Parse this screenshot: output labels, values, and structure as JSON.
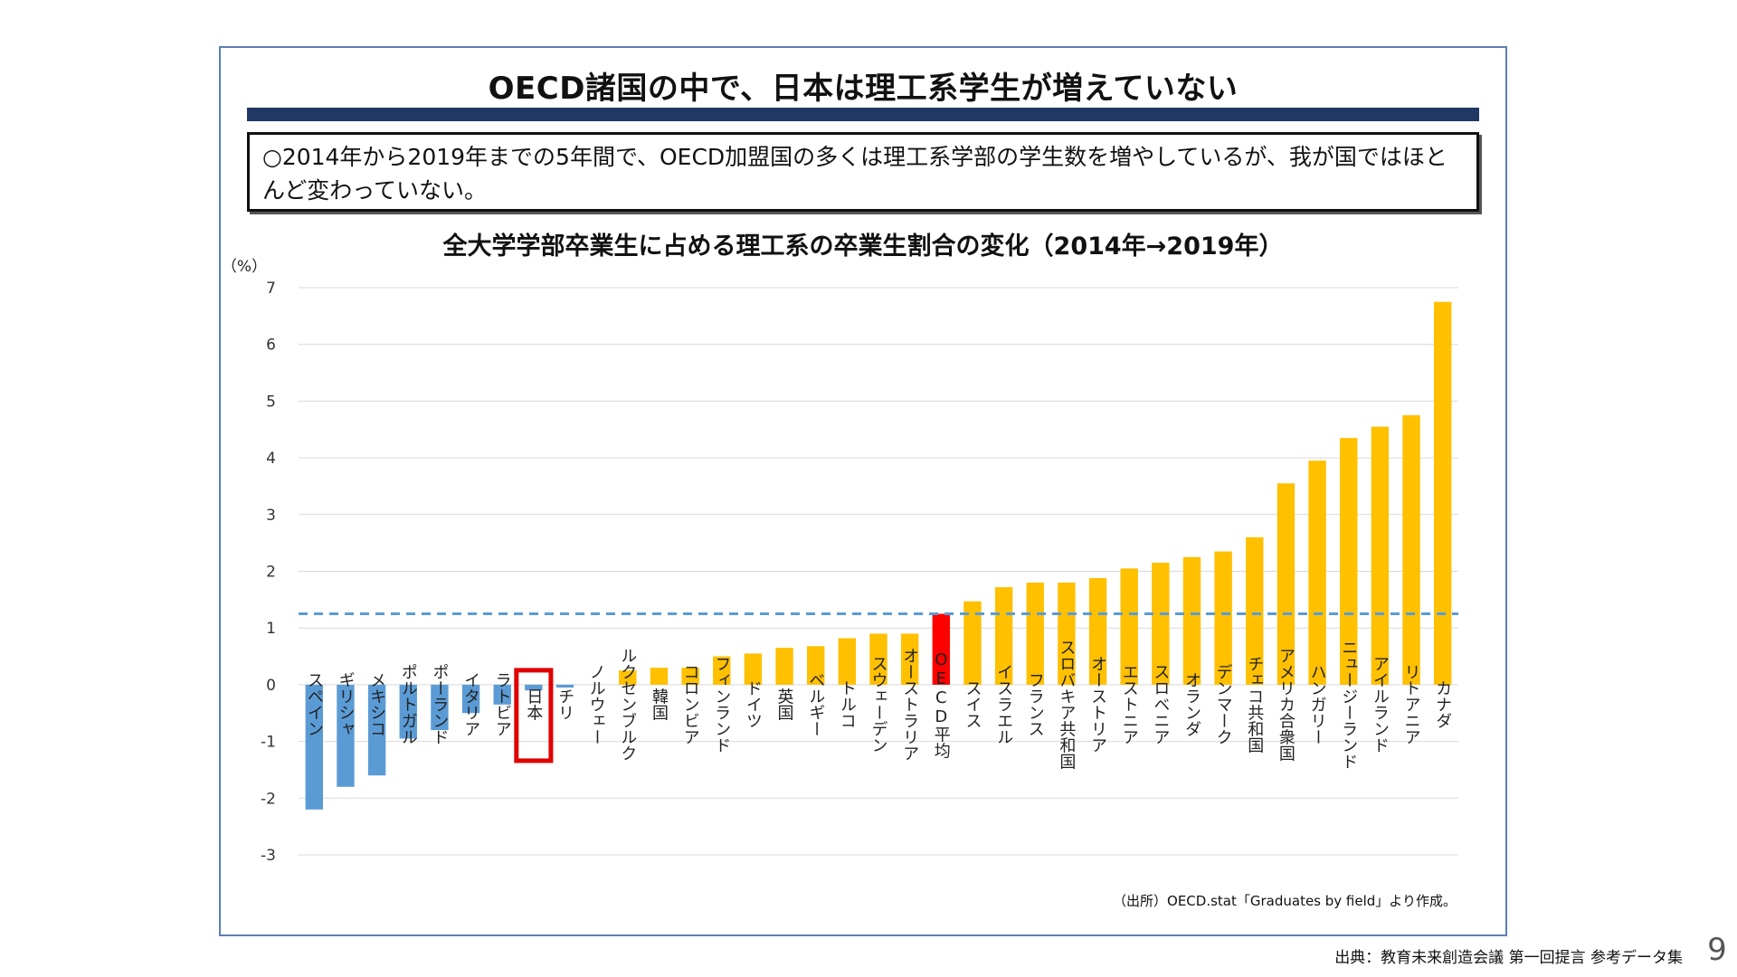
{
  "slide": {
    "title": "OECD諸国の中で、日本は理工系学生が増えていない",
    "summary": "○2014年から2019年までの5年間で、OECD加盟国の多くは理工系学部の学生数を増やしているが、我が国ではほとんど変わっていない。",
    "source_note": "（出所）OECD.stat「Graduates by field」より作成。",
    "footer_source": "出典：教育未来創造会議 第一回提言 参考データ集",
    "page_number": "9"
  },
  "chart_data": {
    "type": "bar",
    "title": "全大学学部卒業生に占める理工系の卒業生割合の変化（2014年→2019年）",
    "ylabel": "（%）",
    "xlabel": "",
    "ylim": [
      -3,
      7
    ],
    "yticks": [
      7,
      6,
      5,
      4,
      3,
      2,
      1,
      0,
      -1,
      -2,
      -3
    ],
    "grid": true,
    "reference_line": {
      "label": "OECD平均",
      "value": 1.25
    },
    "highlight_box": "日本",
    "colors": {
      "negative": "#5b9bd5",
      "positive": "#ffc000",
      "average": "#ff0000",
      "highlight_border": "#e00000",
      "reference_line": "#5b9bd5"
    },
    "categories": [
      "スペイン",
      "ギリシャ",
      "メキシコ",
      "ポルトガル",
      "ポーランド",
      "イタリア",
      "ラトビア",
      "日本",
      "チリ",
      "ノルウェー",
      "ルクセンブルク",
      "韓国",
      "コロンビア",
      "フィンランド",
      "ドイツ",
      "英国",
      "ベルギー",
      "トルコ",
      "スウェーデン",
      "オーストラリア",
      "OECD平均",
      "スイス",
      "イスラエル",
      "フランス",
      "スロバキア共和国",
      "オーストリア",
      "エストニア",
      "スロベニア",
      "オランダ",
      "デンマーク",
      "チェコ共和国",
      "アメリカ合衆国",
      "ハンガリー",
      "ニュージーランド",
      "アイルランド",
      "リトアニア",
      "カナダ"
    ],
    "values": [
      -2.2,
      -1.8,
      -1.6,
      -0.95,
      -0.8,
      -0.5,
      -0.35,
      -0.1,
      -0.05,
      0.0,
      0.25,
      0.3,
      0.3,
      0.5,
      0.55,
      0.65,
      0.68,
      0.82,
      0.9,
      0.9,
      1.25,
      1.47,
      1.72,
      1.8,
      1.8,
      1.88,
      2.05,
      2.15,
      2.25,
      2.35,
      2.6,
      3.55,
      3.95,
      4.35,
      4.55,
      4.75,
      6.75
    ]
  }
}
